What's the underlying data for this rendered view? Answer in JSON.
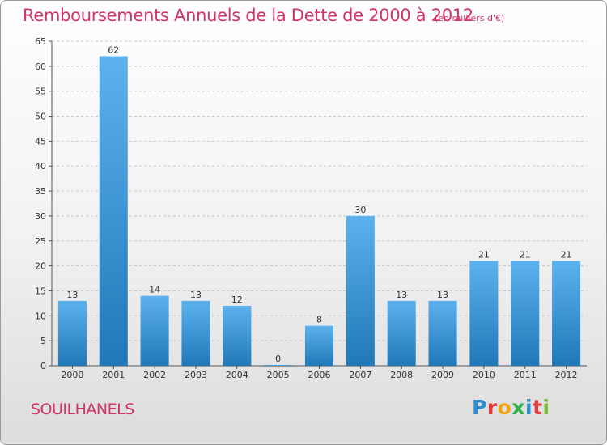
{
  "header": {
    "title": "Remboursements Annuels de la Dette de 2000 à 2012",
    "subtitle": "(en milliers d'€)"
  },
  "footer": {
    "commune": "SOUILHANELS",
    "logo_letters": [
      {
        "ch": "P",
        "color": "#2f8fce"
      },
      {
        "ch": "r",
        "color": "#e23b3b"
      },
      {
        "ch": "o",
        "color": "#f2a413"
      },
      {
        "ch": "x",
        "color": "#2fb04a"
      },
      {
        "ch": "i",
        "color": "#2f8fce"
      },
      {
        "ch": "t",
        "color": "#e23b3b"
      },
      {
        "ch": "i",
        "color": "#7bbf2a"
      }
    ]
  },
  "chart_data": {
    "type": "bar",
    "title": "Remboursements Annuels de la Dette de 2000 à 2012",
    "subtitle": "(en milliers d'€)",
    "categories": [
      "2000",
      "2001",
      "2002",
      "2003",
      "2004",
      "2005",
      "2006",
      "2007",
      "2008",
      "2009",
      "2010",
      "2011",
      "2012"
    ],
    "values": [
      13,
      62,
      14,
      13,
      12,
      0,
      8,
      30,
      13,
      13,
      21,
      21,
      21
    ],
    "data_labels": [
      "13",
      "62",
      "14",
      "13",
      "12",
      "0",
      "8",
      "30",
      "13",
      "13",
      "21",
      "21",
      "21"
    ],
    "xlabel": "",
    "ylabel": "",
    "ylim": [
      0,
      65
    ],
    "yticks": [
      0,
      5,
      10,
      15,
      20,
      25,
      30,
      35,
      40,
      45,
      50,
      55,
      60,
      65
    ],
    "grid": true,
    "bar_color": "#3b9ae0",
    "bar_color_top": "#5cb2ee",
    "bar_color_bottom": "#2178b8"
  }
}
